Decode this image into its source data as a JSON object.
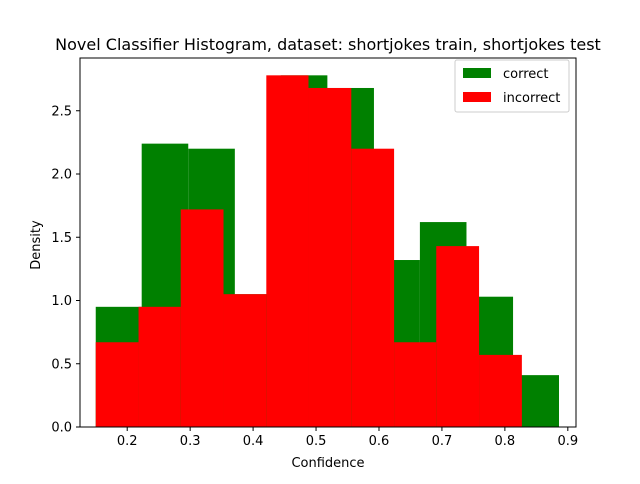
{
  "chart_data": {
    "type": "histogram",
    "title": "Novel Classifier Histogram, dataset: shortjokes train, shortjokes test",
    "xlabel": "Confidence",
    "ylabel": "Density",
    "xlim": [
      0.125,
      0.913
    ],
    "ylim": [
      0,
      2.917
    ],
    "xticks": [
      0.2,
      0.3,
      0.4,
      0.5,
      0.6,
      0.7,
      0.8,
      0.9
    ],
    "yticks": [
      0.0,
      0.5,
      1.0,
      1.5,
      2.0,
      2.5
    ],
    "xtick_labels": [
      "0.2",
      "0.3",
      "0.4",
      "0.5",
      "0.6",
      "0.7",
      "0.8",
      "0.9"
    ],
    "ytick_labels": [
      "0.0",
      "0.5",
      "1.0",
      "1.5",
      "2.0",
      "2.5"
    ],
    "grid": false,
    "legend_position": "top-right",
    "series": [
      {
        "name": "correct",
        "color": "#008000",
        "bins": [
          {
            "x0": 0.15,
            "x1": 0.223,
            "density": 0.95
          },
          {
            "x0": 0.223,
            "x1": 0.297,
            "density": 2.24
          },
          {
            "x0": 0.297,
            "x1": 0.371,
            "density": 2.2
          },
          {
            "x0": 0.371,
            "x1": 0.444,
            "density": 1.05
          },
          {
            "x0": 0.444,
            "x1": 0.518,
            "density": 2.78
          },
          {
            "x0": 0.518,
            "x1": 0.592,
            "density": 2.68
          },
          {
            "x0": 0.592,
            "x1": 0.665,
            "density": 1.32
          },
          {
            "x0": 0.665,
            "x1": 0.739,
            "density": 1.62
          },
          {
            "x0": 0.739,
            "x1": 0.813,
            "density": 1.03
          },
          {
            "x0": 0.813,
            "x1": 0.886,
            "density": 0.41
          }
        ]
      },
      {
        "name": "incorrect",
        "color": "#ff0000",
        "bins": [
          {
            "x0": 0.15,
            "x1": 0.218,
            "density": 0.67
          },
          {
            "x0": 0.218,
            "x1": 0.285,
            "density": 0.95
          },
          {
            "x0": 0.285,
            "x1": 0.353,
            "density": 1.72
          },
          {
            "x0": 0.353,
            "x1": 0.421,
            "density": 1.05
          },
          {
            "x0": 0.421,
            "x1": 0.488,
            "density": 2.78
          },
          {
            "x0": 0.488,
            "x1": 0.556,
            "density": 2.68
          },
          {
            "x0": 0.556,
            "x1": 0.624,
            "density": 2.2
          },
          {
            "x0": 0.624,
            "x1": 0.691,
            "density": 0.67
          },
          {
            "x0": 0.691,
            "x1": 0.759,
            "density": 1.43
          },
          {
            "x0": 0.759,
            "x1": 0.827,
            "density": 0.57
          }
        ]
      }
    ]
  }
}
